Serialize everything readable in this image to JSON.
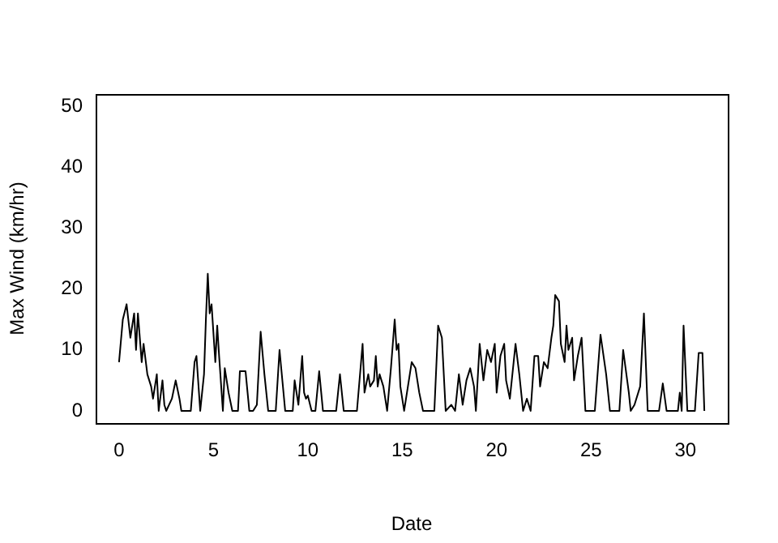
{
  "chart_data": {
    "type": "line",
    "xlabel": "Date",
    "ylabel": "Max Wind (km/hr)",
    "x": [
      0.0,
      0.2,
      0.4,
      0.6,
      0.8,
      0.9,
      1.0,
      1.2,
      1.3,
      1.5,
      1.7,
      1.8,
      2.0,
      2.1,
      2.3,
      2.4,
      2.5,
      2.8,
      3.0,
      3.2,
      3.3,
      3.8,
      4.0,
      4.1,
      4.3,
      4.5,
      4.6,
      4.7,
      4.8,
      4.9,
      5.1,
      5.2,
      5.3,
      5.5,
      5.6,
      5.8,
      6.0,
      6.3,
      6.4,
      6.7,
      6.9,
      7.1,
      7.3,
      7.5,
      7.7,
      7.9,
      8.3,
      8.5,
      8.8,
      9.2,
      9.3,
      9.5,
      9.7,
      9.8,
      9.9,
      10.0,
      10.2,
      10.4,
      10.6,
      10.8,
      11.5,
      11.7,
      11.9,
      12.6,
      12.9,
      13.0,
      13.2,
      13.3,
      13.5,
      13.6,
      13.7,
      13.8,
      14.0,
      14.2,
      14.4,
      14.6,
      14.7,
      14.8,
      14.9,
      15.1,
      15.3,
      15.5,
      15.7,
      15.9,
      16.1,
      16.7,
      16.9,
      17.1,
      17.3,
      17.6,
      17.8,
      18.0,
      18.2,
      18.4,
      18.6,
      18.8,
      18.9,
      19.1,
      19.3,
      19.5,
      19.7,
      19.9,
      20.0,
      20.2,
      20.4,
      20.5,
      20.7,
      20.9,
      21.0,
      21.2,
      21.4,
      21.6,
      21.8,
      22.0,
      22.2,
      22.3,
      22.5,
      22.7,
      22.9,
      23.0,
      23.1,
      23.3,
      23.4,
      23.6,
      23.7,
      23.8,
      24.0,
      24.1,
      24.3,
      24.5,
      24.7,
      25.2,
      25.5,
      25.8,
      26.0,
      26.5,
      26.7,
      27.0,
      27.1,
      27.3,
      27.6,
      27.8,
      28.0,
      28.6,
      28.8,
      29.0,
      29.6,
      29.7,
      29.8,
      29.9,
      30.1,
      30.5,
      30.7,
      30.9,
      31.0
    ],
    "values": [
      8,
      15,
      17.5,
      12,
      16,
      10,
      16,
      8,
      11,
      6,
      4,
      2,
      6,
      0,
      5,
      1,
      0,
      2,
      5,
      2,
      0,
      0,
      8,
      9,
      0,
      6,
      15,
      22.5,
      16,
      17.5,
      8,
      14,
      9,
      0,
      7,
      3,
      0,
      0,
      6.5,
      6.5,
      0,
      0,
      1,
      13,
      6,
      0,
      0,
      10,
      0,
      0,
      5,
      1,
      9,
      3,
      2,
      2.5,
      0,
      0,
      6.5,
      0,
      0,
      6,
      0,
      0,
      11,
      3,
      6,
      4,
      5,
      9,
      4,
      6,
      4,
      0,
      7,
      15,
      10,
      11,
      4,
      0,
      4,
      8,
      7,
      3,
      0,
      0,
      14,
      12,
      0,
      1,
      0,
      6,
      1,
      5,
      7,
      4,
      0,
      11,
      5,
      10,
      8,
      11,
      3,
      9,
      11,
      5,
      2,
      8,
      11,
      6,
      0,
      2,
      0,
      9,
      9,
      4,
      8,
      7,
      12,
      14,
      19,
      18,
      11,
      8,
      14,
      10,
      12,
      5,
      9,
      12,
      0,
      0,
      12.5,
      6,
      0,
      0,
      10,
      3,
      0,
      1,
      4,
      16,
      0,
      0,
      4.5,
      0,
      0,
      3,
      0,
      14,
      0,
      0,
      9.5,
      9.5,
      0
    ],
    "color": "#000000",
    "xlim": [
      -1.24,
      32.24
    ],
    "xticks": [
      0,
      5,
      10,
      15,
      20,
      25,
      30
    ],
    "ylim": [
      -2,
      52
    ],
    "yticks": [
      0,
      10,
      20,
      30,
      40,
      50
    ],
    "grid": false,
    "legend": false,
    "marker": "none",
    "line_style": "solid"
  }
}
